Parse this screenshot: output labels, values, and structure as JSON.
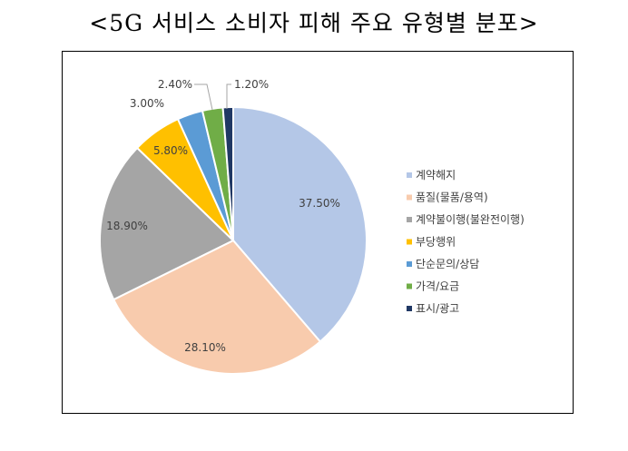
{
  "title": "<5G 서비스 소비자 피해 주요 유형별 분포>",
  "chart_data": {
    "type": "pie",
    "title": "<5G 서비스 소비자 피해 주요 유형별 분포>",
    "legend_position": "right",
    "slices": [
      {
        "label": "계약해지",
        "value": 37.5,
        "display": "37.50%",
        "color": "#b4c7e7"
      },
      {
        "label": "품질(물품/용역)",
        "value": 28.1,
        "display": "28.10%",
        "color": "#f8cbad"
      },
      {
        "label": "계약불이행(불완전이행)",
        "value": 18.9,
        "display": "18.90%",
        "color": "#a5a5a5"
      },
      {
        "label": "부당행위",
        "value": 5.8,
        "display": "5.80%",
        "color": "#ffc000"
      },
      {
        "label": "단순문의/상담",
        "value": 3.0,
        "display": "3.00%",
        "color": "#5b9bd5"
      },
      {
        "label": "가격/요금",
        "value": 2.4,
        "display": "2.40%",
        "color": "#70ad47"
      },
      {
        "label": "표시/광고",
        "value": 1.2,
        "display": "1.20%",
        "color": "#203864"
      }
    ]
  }
}
